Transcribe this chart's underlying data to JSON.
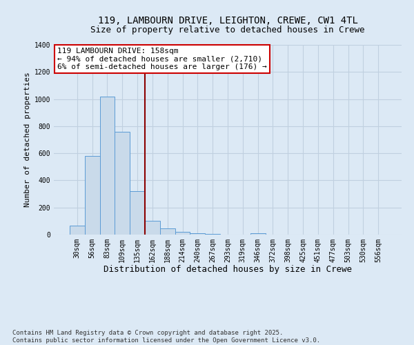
{
  "title1": "119, LAMBOURN DRIVE, LEIGHTON, CREWE, CW1 4TL",
  "title2": "Size of property relative to detached houses in Crewe",
  "xlabel": "Distribution of detached houses by size in Crewe",
  "ylabel": "Number of detached properties",
  "categories": [
    "30sqm",
    "56sqm",
    "83sqm",
    "109sqm",
    "135sqm",
    "162sqm",
    "188sqm",
    "214sqm",
    "240sqm",
    "267sqm",
    "293sqm",
    "319sqm",
    "346sqm",
    "372sqm",
    "398sqm",
    "425sqm",
    "451sqm",
    "477sqm",
    "503sqm",
    "530sqm",
    "556sqm"
  ],
  "values": [
    65,
    580,
    1020,
    760,
    320,
    100,
    45,
    18,
    8,
    3,
    2,
    1,
    10,
    0,
    0,
    0,
    0,
    0,
    0,
    0,
    0
  ],
  "bar_color": "#c9daea",
  "bar_edgecolor": "#5b9bd5",
  "vline_x": 4.5,
  "vline_color": "#8b0000",
  "annotation_text": "119 LAMBOURN DRIVE: 158sqm\n← 94% of detached houses are smaller (2,710)\n6% of semi-detached houses are larger (176) →",
  "ylim": [
    0,
    1400
  ],
  "yticks": [
    0,
    200,
    400,
    600,
    800,
    1000,
    1200,
    1400
  ],
  "footer": "Contains HM Land Registry data © Crown copyright and database right 2025.\nContains public sector information licensed under the Open Government Licence v3.0.",
  "bg_color": "#dce9f5",
  "plot_bg_color": "#dce9f5",
  "title1_fontsize": 10,
  "title2_fontsize": 9,
  "xlabel_fontsize": 9,
  "ylabel_fontsize": 8,
  "tick_fontsize": 7,
  "annotation_fontsize": 8,
  "footer_fontsize": 6.5,
  "grid_color": "#c0d0e0"
}
